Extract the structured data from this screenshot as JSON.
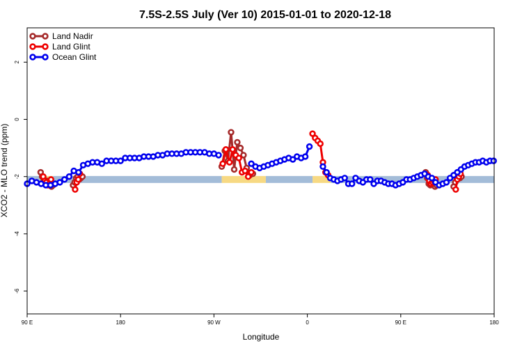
{
  "chart_data": {
    "type": "line",
    "title": "7.5S-2.5S July (Ver 10)   2015-01-01 to 2020-12-18",
    "xlabel": "Longitude",
    "ylabel": "XCO2 - MLO trend (ppm)",
    "xlim": [
      -90,
      90
    ],
    "ylim": [
      -6.8,
      3.2
    ],
    "x_ticks": [
      {
        "value": -90,
        "label": "90 E"
      },
      {
        "value": -54,
        "label": "180"
      },
      {
        "value": -18,
        "label": "90 W"
      },
      {
        "value": 18,
        "label": "0"
      },
      {
        "value": 54,
        "label": "90 E"
      },
      {
        "value": 90,
        "label": "180"
      }
    ],
    "y_ticks": [
      {
        "value": 2,
        "label": "2"
      },
      {
        "value": 0,
        "label": "0"
      },
      {
        "value": -2,
        "label": "-2"
      },
      {
        "value": -4,
        "label": "-4"
      },
      {
        "value": -6,
        "label": "-6"
      }
    ],
    "legend": {
      "position": "top-left"
    },
    "surface_bar": {
      "y": -2.1,
      "segments": [
        {
          "x0": -90,
          "x1": -85,
          "type": "ocean",
          "color": "#a3bcd8"
        },
        {
          "x0": -85,
          "x1": -80,
          "type": "land",
          "color": "#f7d983"
        },
        {
          "x0": -80,
          "x1": -15,
          "type": "ocean",
          "color": "#a3bcd8"
        },
        {
          "x0": -15,
          "x1": 2,
          "type": "land",
          "color": "#f7d983"
        },
        {
          "x0": 2,
          "x1": 20,
          "type": "ocean",
          "color": "#a3bcd8"
        },
        {
          "x0": 20,
          "x1": 27,
          "type": "land",
          "color": "#f7d983"
        },
        {
          "x0": 27,
          "x1": 90,
          "type": "ocean",
          "color": "#a3bcd8"
        }
      ]
    },
    "series": [
      {
        "name": "Land Nadir",
        "color": "#a52a2a",
        "segments": [
          [
            [
              -84.8,
              -1.85
            ],
            [
              -84.2,
              -2.0
            ],
            [
              -83.6,
              -2.1
            ],
            [
              -83.0,
              -2.2
            ],
            [
              -82.4,
              -2.15
            ],
            [
              -81.8,
              -2.25
            ],
            [
              -81.2,
              -2.3
            ],
            [
              -80.6,
              -2.35
            ],
            [
              -80.0,
              -2.3
            ]
          ],
          [
            [
              -72.3,
              -2.3
            ],
            [
              -71.7,
              -2.2
            ],
            [
              -71.1,
              -2.05
            ],
            [
              -70.5,
              -2.0
            ],
            [
              -69.9,
              -2.1
            ],
            [
              -69.3,
              -2.05
            ],
            [
              -68.7,
              -2.0
            ]
          ],
          [
            [
              -15.0,
              -1.65
            ],
            [
              -13.8,
              -1.1
            ],
            [
              -12.6,
              -1.45
            ],
            [
              -11.4,
              -0.45
            ],
            [
              -10.2,
              -1.75
            ],
            [
              -9.0,
              -0.8
            ],
            [
              -7.8,
              -1.0
            ],
            [
              -6.6,
              -1.25
            ],
            [
              -5.4,
              -1.7
            ],
            [
              -4.2,
              -1.95
            ],
            [
              -3.0,
              -1.9
            ]
          ],
          [
            [
              63.6,
              -1.85
            ],
            [
              64.2,
              -2.05
            ],
            [
              64.8,
              -2.25
            ],
            [
              65.4,
              -2.3
            ],
            [
              66.0,
              -2.25
            ],
            [
              66.6,
              -2.3
            ],
            [
              67.2,
              -2.35
            ],
            [
              67.8,
              -2.3
            ]
          ],
          [
            [
              74.4,
              -2.35
            ],
            [
              75.0,
              -2.2
            ],
            [
              75.6,
              -2.05
            ],
            [
              76.2,
              -2.0
            ],
            [
              76.8,
              -2.05
            ],
            [
              77.4,
              -2.0
            ]
          ]
        ]
      },
      {
        "name": "Land Glint",
        "color": "#ee0000",
        "segments": [
          [
            [
              -83.8,
              -2.0
            ],
            [
              -83.2,
              -2.15
            ],
            [
              -82.6,
              -2.2
            ],
            [
              -82.0,
              -2.3
            ],
            [
              -81.4,
              -2.25
            ],
            [
              -80.8,
              -2.1
            ]
          ],
          [
            [
              -71.5,
              -2.45
            ],
            [
              -70.9,
              -2.2
            ],
            [
              -70.3,
              -2.1
            ],
            [
              -69.7,
              -1.9
            ]
          ],
          [
            [
              -14.6,
              -1.55
            ],
            [
              -13.4,
              -1.05
            ],
            [
              -12.0,
              -1.5
            ],
            [
              -10.8,
              -1.05
            ],
            [
              -9.6,
              -1.25
            ],
            [
              -8.4,
              -1.35
            ],
            [
              -7.2,
              -1.85
            ],
            [
              -6.0,
              -1.8
            ],
            [
              -4.8,
              -2.0
            ],
            [
              -3.6,
              -1.85
            ]
          ],
          [
            [
              20.0,
              -0.5
            ],
            [
              21.0,
              -0.65
            ],
            [
              22.0,
              -0.75
            ],
            [
              23.0,
              -0.85
            ],
            [
              24.0,
              -1.5
            ],
            [
              25.0,
              -1.85
            ],
            [
              26.0,
              -1.95
            ]
          ],
          [
            [
              64.4,
              -1.95
            ],
            [
              65.0,
              -2.15
            ],
            [
              65.6,
              -2.25
            ],
            [
              66.2,
              -2.2
            ],
            [
              66.8,
              -2.15
            ],
            [
              67.4,
              -2.1
            ]
          ],
          [
            [
              75.2,
              -2.45
            ],
            [
              75.8,
              -2.1
            ],
            [
              76.4,
              -2.0
            ],
            [
              77.0,
              -1.9
            ]
          ]
        ]
      },
      {
        "name": "Ocean Glint",
        "color": "#0000ee",
        "segments": [
          [
            [
              -90.0,
              -2.25
            ],
            [
              -88.2,
              -2.15
            ],
            [
              -86.4,
              -2.2
            ],
            [
              -84.6,
              -2.25
            ],
            [
              -82.8,
              -2.3
            ],
            [
              -81.0,
              -2.3
            ],
            [
              -79.2,
              -2.25
            ],
            [
              -77.4,
              -2.2
            ],
            [
              -75.6,
              -2.1
            ],
            [
              -73.8,
              -2.0
            ],
            [
              -72.0,
              -1.8
            ],
            [
              -70.2,
              -1.85
            ],
            [
              -68.4,
              -1.6
            ],
            [
              -66.6,
              -1.55
            ],
            [
              -64.8,
              -1.5
            ],
            [
              -63.0,
              -1.5
            ],
            [
              -61.2,
              -1.55
            ],
            [
              -59.4,
              -1.45
            ],
            [
              -57.6,
              -1.45
            ],
            [
              -55.8,
              -1.45
            ],
            [
              -54.0,
              -1.45
            ],
            [
              -52.2,
              -1.35
            ],
            [
              -50.4,
              -1.35
            ],
            [
              -48.6,
              -1.35
            ],
            [
              -46.8,
              -1.35
            ],
            [
              -45.0,
              -1.3
            ],
            [
              -43.2,
              -1.3
            ],
            [
              -41.4,
              -1.3
            ],
            [
              -39.6,
              -1.25
            ],
            [
              -37.8,
              -1.25
            ],
            [
              -36.0,
              -1.2
            ],
            [
              -34.2,
              -1.2
            ],
            [
              -32.4,
              -1.2
            ],
            [
              -30.6,
              -1.2
            ],
            [
              -28.8,
              -1.15
            ],
            [
              -27.0,
              -1.15
            ],
            [
              -25.2,
              -1.15
            ],
            [
              -23.4,
              -1.15
            ],
            [
              -21.6,
              -1.15
            ],
            [
              -19.8,
              -1.2
            ],
            [
              -18.0,
              -1.2
            ],
            [
              -16.2,
              -1.25
            ]
          ],
          [
            [
              -3.6,
              -1.55
            ],
            [
              -2.0,
              -1.65
            ],
            [
              -0.4,
              -1.7
            ],
            [
              1.2,
              -1.65
            ],
            [
              2.8,
              -1.6
            ],
            [
              4.4,
              -1.55
            ],
            [
              6.0,
              -1.5
            ],
            [
              7.6,
              -1.45
            ],
            [
              9.2,
              -1.4
            ],
            [
              10.8,
              -1.35
            ],
            [
              12.4,
              -1.4
            ],
            [
              14.0,
              -1.3
            ],
            [
              15.6,
              -1.35
            ],
            [
              17.2,
              -1.3
            ],
            [
              18.8,
              -0.95
            ]
          ],
          [
            [
              24.0,
              -1.65
            ],
            [
              25.4,
              -1.85
            ],
            [
              26.8,
              -2.05
            ],
            [
              28.2,
              -2.1
            ],
            [
              29.6,
              -2.15
            ],
            [
              31.0,
              -2.1
            ],
            [
              32.4,
              -2.05
            ],
            [
              33.8,
              -2.25
            ],
            [
              35.2,
              -2.25
            ],
            [
              36.6,
              -2.05
            ],
            [
              38.0,
              -2.15
            ],
            [
              39.4,
              -2.2
            ],
            [
              40.8,
              -2.1
            ],
            [
              42.2,
              -2.1
            ],
            [
              43.6,
              -2.25
            ],
            [
              45.0,
              -2.15
            ],
            [
              46.4,
              -2.15
            ],
            [
              47.8,
              -2.2
            ],
            [
              49.2,
              -2.25
            ],
            [
              50.6,
              -2.25
            ],
            [
              52.0,
              -2.3
            ],
            [
              53.4,
              -2.25
            ],
            [
              54.8,
              -2.2
            ],
            [
              56.2,
              -2.1
            ],
            [
              57.6,
              -2.1
            ],
            [
              59.0,
              -2.05
            ],
            [
              60.4,
              -2.0
            ],
            [
              61.8,
              -1.95
            ],
            [
              63.2,
              -1.9
            ],
            [
              64.6,
              -2.0
            ],
            [
              66.0,
              -2.05
            ],
            [
              67.4,
              -2.2
            ],
            [
              68.8,
              -2.3
            ],
            [
              70.2,
              -2.25
            ],
            [
              71.6,
              -2.2
            ],
            [
              73.0,
              -2.05
            ],
            [
              74.4,
              -1.95
            ],
            [
              75.8,
              -1.85
            ],
            [
              77.2,
              -1.75
            ],
            [
              78.6,
              -1.65
            ],
            [
              80.0,
              -1.6
            ],
            [
              81.4,
              -1.55
            ],
            [
              82.8,
              -1.5
            ],
            [
              84.2,
              -1.5
            ],
            [
              85.6,
              -1.45
            ],
            [
              87.0,
              -1.5
            ],
            [
              88.4,
              -1.45
            ],
            [
              89.8,
              -1.45
            ]
          ]
        ]
      }
    ]
  }
}
